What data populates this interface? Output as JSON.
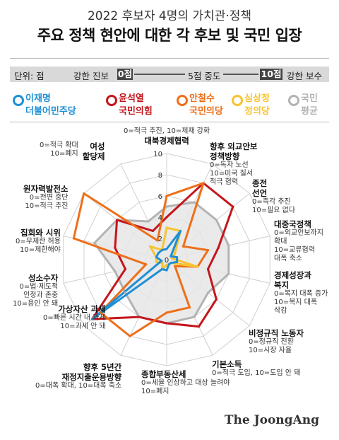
{
  "header": {
    "subtitle": "2022 후보자 4명의 가치관·정책",
    "title": "주요 정책 현안에 대한 각 후보 및 국민 입장"
  },
  "scale": {
    "unit": "단위: 점",
    "left_pole": "강한 진보",
    "zero": "0점",
    "mid": "5점 중도",
    "ten": "10점",
    "right_pole": "강한 보수"
  },
  "brand": "The JoongAng",
  "chart_data": {
    "type": "radar",
    "title": "주요 정책 현안에 대한 각 후보 및 국민 입장",
    "rlim": [
      0,
      10
    ],
    "r_ticks": [
      2,
      4,
      6,
      8,
      10
    ],
    "axes": [
      {
        "name": "대북경제협력",
        "desc": "0=적극 추진, 10=제재 강화"
      },
      {
        "name": "향후 외교안보\n정책방향",
        "desc": "0=독자 노선\n10=미국 질서\n적극 협력"
      },
      {
        "name": "종전\n선언",
        "desc": "0=즉각 추진\n10=필요 없다"
      },
      {
        "name": "대중국정책",
        "desc": "0=외교안보까지\n확대\n10=교류협력\n대폭 축소"
      },
      {
        "name": "경제성장과\n복지",
        "desc": "0=복지 대폭 증가\n10=복지 대폭\n삭감"
      },
      {
        "name": "비정규직 노동자",
        "desc": "0=정규직 전환\n10=시장 자율"
      },
      {
        "name": "기본소득",
        "desc": "0=적극 도입, 10=도입 안 돼"
      },
      {
        "name": "종합부동산세",
        "desc": "0=세율 인상하고 대상 늘려야\n10=폐지"
      },
      {
        "name": "향후 5년간\n재정지출운용방향",
        "desc": "0=대폭 확대, 10=대폭 축소"
      },
      {
        "name": "가상자산 과세",
        "desc": "0=빠른 시간 내 과세\n10=과세 안 돼"
      },
      {
        "name": "성소수자",
        "desc": "0=법·제도적\n인정과 존중\n10=용인 안 돼"
      },
      {
        "name": "집회와 시위",
        "desc": "0=무제한 허용\n10=제한해야"
      },
      {
        "name": "원자력발전소",
        "desc": "0=전면 중단\n10=적극 추진"
      },
      {
        "name": "여성\n할당제",
        "desc": "0=적극 확대\n10=폐지"
      }
    ],
    "series": [
      {
        "name": "이재명",
        "party": "더불어민주당",
        "color": "#1f8fd4",
        "values": [
          1,
          3,
          0.5,
          1,
          1,
          0.5,
          0.5,
          1,
          1,
          9,
          0.5,
          1,
          1,
          1
        ]
      },
      {
        "name": "윤석열",
        "party": "국민의힘",
        "color": "#c4161c",
        "values": [
          4,
          8,
          8,
          5,
          4,
          6,
          7,
          6,
          6,
          9,
          4,
          5,
          6,
          3
        ]
      },
      {
        "name": "안철수",
        "party": "국민의당",
        "color": "#ee6f1a",
        "values": [
          6,
          8,
          2,
          4,
          3,
          1,
          5,
          5,
          8,
          8,
          2,
          9,
          10,
          2
        ]
      },
      {
        "name": "심상정",
        "party": "정의당",
        "color": "#f7c331",
        "values": [
          3,
          3,
          1,
          0.5,
          3,
          0.5,
          0.5,
          0.5,
          1,
          0.5,
          1,
          1,
          2,
          1
        ]
      },
      {
        "name": "국민",
        "party": "평균",
        "color": "#b3b3b3",
        "values": [
          5,
          6,
          6,
          6,
          6,
          5,
          6,
          6,
          6,
          5,
          5,
          7,
          6,
          4
        ]
      }
    ]
  }
}
